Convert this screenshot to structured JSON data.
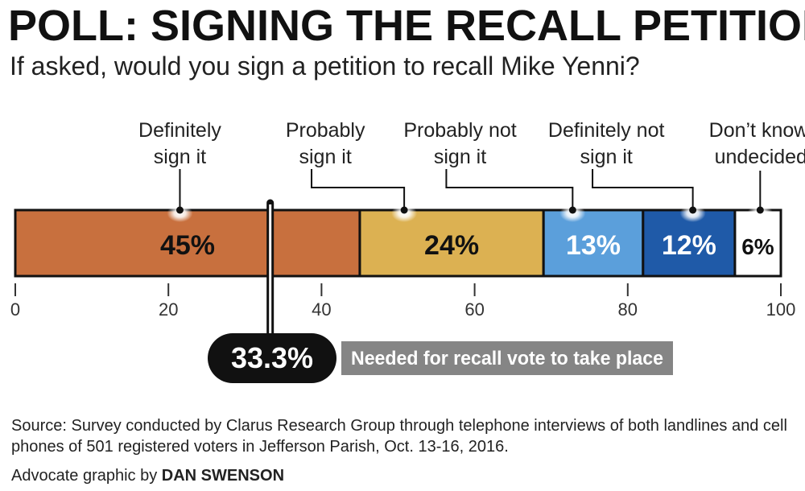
{
  "header": {
    "title": "POLL: SIGNING THE RECALL PETITION",
    "subtitle": "If asked, would you sign a petition to recall Mike Yenni?"
  },
  "chart_data": {
    "type": "bar",
    "orientation": "horizontal-stacked",
    "xlim": [
      0,
      100
    ],
    "xticks": [
      "0",
      "20",
      "40",
      "60",
      "80",
      "100"
    ],
    "series": [
      {
        "name": "Definitely sign it",
        "label_lines": [
          "Definitely",
          "sign it"
        ],
        "value": 45,
        "value_label": "45%",
        "color": "#c8703e",
        "text_color": "#111111"
      },
      {
        "name": "Probably sign it",
        "label_lines": [
          "Probably",
          "sign it"
        ],
        "value": 24,
        "value_label": "24%",
        "color": "#dcb152",
        "text_color": "#111111"
      },
      {
        "name": "Probably not sign it",
        "label_lines": [
          "Probably not",
          "sign it"
        ],
        "value": 13,
        "value_label": "13%",
        "color": "#5b9fdb",
        "text_color": "#ffffff"
      },
      {
        "name": "Definitely not sign it",
        "label_lines": [
          "Definitely not",
          "sign it"
        ],
        "value": 12,
        "value_label": "12%",
        "color": "#1f5aa8",
        "text_color": "#ffffff"
      },
      {
        "name": "Don’t know, undecided",
        "label_lines": [
          "Don’t know,",
          "undecided"
        ],
        "value": 6,
        "value_label": "6%",
        "color": "#ffffff",
        "text_color": "#111111"
      }
    ],
    "threshold": {
      "value": 33.3,
      "value_label": "33.3%",
      "label": "Needed for recall vote to take place"
    }
  },
  "footer": {
    "source": "Source: Survey conducted by Clarus Research Group through telephone interviews of both landlines and cell phones of 501 registered voters in Jefferson Parish, Oct. 13-16, 2016.",
    "credit_prefix": "Advocate graphic by",
    "credit_author": "DAN SWENSON"
  }
}
